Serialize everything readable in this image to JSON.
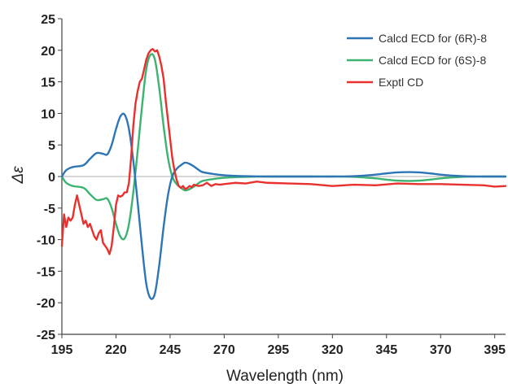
{
  "chart_data": {
    "type": "line",
    "title": "",
    "xlabel": "Wavelength (nm)",
    "ylabel": "Δε",
    "xlim": [
      195,
      400
    ],
    "ylim": [
      -25,
      25
    ],
    "x_ticks": [
      195,
      220,
      245,
      270,
      295,
      320,
      345,
      370,
      395
    ],
    "y_ticks": [
      25,
      20,
      15,
      10,
      5,
      0,
      -5,
      -10,
      -15,
      -20,
      -25
    ],
    "grid": false,
    "zero_line": true,
    "legend_position": "top-right",
    "series": [
      {
        "name": "Calcd ECD for (6R)-8",
        "color": "#2e75b6",
        "x": [
          195,
          197,
          200,
          205,
          208,
          211,
          214,
          216,
          218,
          220,
          222,
          224,
          226,
          228,
          230,
          232,
          234,
          236,
          238,
          240,
          242,
          244,
          246,
          248,
          250,
          252,
          254,
          256,
          258,
          260,
          265,
          270,
          275,
          280,
          290,
          300,
          310,
          320,
          330,
          340,
          345,
          350,
          355,
          360,
          365,
          370,
          375,
          380,
          385,
          390,
          395,
          400
        ],
        "y": [
          0,
          1,
          1.5,
          1.8,
          2.8,
          3.7,
          3.6,
          3.5,
          5,
          7.5,
          9.5,
          9.8,
          7.5,
          2.5,
          -4,
          -11,
          -17,
          -19.3,
          -18.5,
          -14,
          -8,
          -3,
          0,
          1.2,
          1.8,
          2.2,
          2.0,
          1.6,
          1.1,
          0.7,
          0.4,
          0.2,
          0.1,
          0.05,
          0,
          0,
          0,
          0,
          0.05,
          0.3,
          0.5,
          0.65,
          0.7,
          0.65,
          0.5,
          0.3,
          0.15,
          0.05,
          0,
          0,
          0,
          0
        ]
      },
      {
        "name": "Calcd ECD for (6S)-8",
        "color": "#3cb371",
        "x": [
          195,
          197,
          200,
          205,
          208,
          211,
          214,
          216,
          218,
          220,
          222,
          224,
          226,
          228,
          230,
          232,
          234,
          236,
          238,
          240,
          242,
          244,
          246,
          248,
          250,
          252,
          254,
          256,
          258,
          260,
          265,
          270,
          275,
          280,
          290,
          300,
          310,
          320,
          330,
          340,
          345,
          350,
          355,
          360,
          365,
          370,
          375,
          380,
          385,
          390,
          395,
          400
        ],
        "y": [
          0,
          -1,
          -1.5,
          -1.8,
          -2.8,
          -3.7,
          -3.6,
          -3.5,
          -5,
          -7.5,
          -9.5,
          -9.8,
          -7.5,
          -2.5,
          4,
          11,
          17,
          19.3,
          18.5,
          14,
          8,
          3,
          0,
          -1.2,
          -1.8,
          -2.2,
          -2.0,
          -1.6,
          -1.1,
          -0.7,
          -0.4,
          -0.2,
          -0.1,
          -0.05,
          0,
          0,
          0,
          0,
          -0.05,
          -0.3,
          -0.5,
          -0.65,
          -0.7,
          -0.65,
          -0.5,
          -0.3,
          -0.15,
          -0.05,
          0,
          0,
          0,
          0
        ]
      },
      {
        "name": "Exptl CD",
        "color": "#e8312f",
        "x": [
          195,
          196,
          197,
          198,
          199,
          200,
          201,
          202,
          203,
          204,
          205,
          206,
          207,
          208,
          209,
          210,
          211,
          212,
          213,
          214,
          215,
          216,
          217,
          218,
          219,
          220,
          221,
          222,
          223,
          224,
          225,
          226,
          227,
          228,
          229,
          230,
          231,
          232,
          233,
          234,
          235,
          236,
          237,
          238,
          239,
          240,
          241,
          242,
          243,
          244,
          245,
          246,
          247,
          248,
          249,
          250,
          251,
          252,
          253,
          254,
          255,
          256,
          258,
          260,
          262,
          264,
          266,
          268,
          270,
          275,
          280,
          285,
          290,
          300,
          310,
          320,
          330,
          340,
          350,
          360,
          370,
          380,
          390,
          395,
          400
        ],
        "y": [
          -11,
          -6,
          -8,
          -6.5,
          -7,
          -6.5,
          -4.5,
          -3,
          -4.5,
          -6,
          -7.5,
          -7,
          -8,
          -7.5,
          -8.5,
          -9.5,
          -10,
          -9,
          -8.5,
          -10.5,
          -11,
          -11.5,
          -12.3,
          -11,
          -8,
          -4.5,
          -3,
          -3.2,
          -3,
          -2.5,
          -2.5,
          -1,
          3,
          8,
          11.5,
          13.5,
          15,
          15.5,
          17,
          18.5,
          19.5,
          20,
          20.2,
          19.8,
          20,
          19,
          17.5,
          15.5,
          12,
          9,
          6,
          3,
          1,
          -0.5,
          -1.5,
          -1.8,
          -1.5,
          -2,
          -1.8,
          -1.5,
          -1.7,
          -1.3,
          -1.5,
          -1.4,
          -1.0,
          -1.5,
          -1.2,
          -1.3,
          -1.2,
          -1.0,
          -1.1,
          -0.8,
          -1.0,
          -1.1,
          -1.2,
          -1.5,
          -1.3,
          -1.4,
          -1.1,
          -1.2,
          -1.2,
          -1.3,
          -1.4,
          -1.6,
          -1.5
        ]
      }
    ]
  }
}
